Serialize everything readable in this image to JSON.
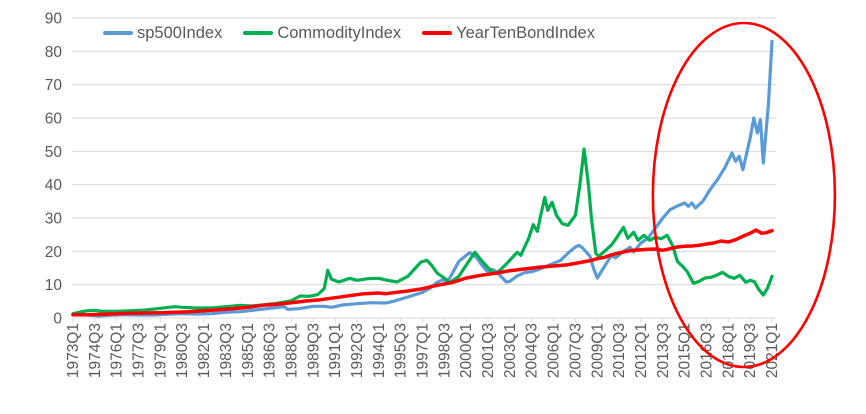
{
  "chart_data": {
    "type": "line",
    "title": "",
    "legend_position": "top",
    "grid": true,
    "y_axis": {
      "min": 0,
      "max": 90,
      "step": 10,
      "tick_labels": [
        "0",
        "10",
        "20",
        "30",
        "40",
        "50",
        "60",
        "70",
        "80",
        "90"
      ]
    },
    "x_axis": {
      "unit": "quarter",
      "first_label": "1973Q1",
      "last_label": "2021Q1",
      "tick_labels": [
        "1973Q1",
        "1974Q3",
        "1976Q1",
        "1977Q3",
        "1979Q1",
        "1980Q3",
        "1982Q1",
        "1983Q3",
        "1985Q1",
        "1986Q3",
        "1988Q1",
        "1989Q3",
        "1991Q1",
        "1992Q3",
        "1994Q1",
        "1995Q3",
        "1997Q1",
        "1998Q3",
        "2000Q1",
        "2001Q3",
        "2003Q1",
        "2004Q3",
        "2006Q1",
        "2007Q3",
        "2009Q1",
        "2010Q3",
        "2012Q1",
        "2013Q3",
        "2015Q1",
        "2016Q3",
        "2018Q1",
        "2019Q3",
        "2021Q1"
      ]
    },
    "series": [
      {
        "name": "sp500Index",
        "color": "#5B9BD5",
        "line_width": 3.2,
        "points": [
          [
            1973,
            1
          ],
          [
            1973.5,
            1
          ],
          [
            1974,
            0.9
          ],
          [
            1974.75,
            0.6
          ],
          [
            1975.5,
            0.8
          ],
          [
            1976.5,
            1
          ],
          [
            1977.5,
            0.9
          ],
          [
            1978.5,
            0.9
          ],
          [
            1979.5,
            1.1
          ],
          [
            1980.5,
            1.3
          ],
          [
            1981.5,
            1.2
          ],
          [
            1982.5,
            1.3
          ],
          [
            1983.5,
            1.7
          ],
          [
            1984.5,
            1.9
          ],
          [
            1985.5,
            2.4
          ],
          [
            1986.5,
            2.9
          ],
          [
            1987.5,
            3.4
          ],
          [
            1987.75,
            2.6
          ],
          [
            1988.5,
            2.8
          ],
          [
            1989.5,
            3.5
          ],
          [
            1990.25,
            3.5
          ],
          [
            1990.75,
            3.2
          ],
          [
            1991.5,
            3.9
          ],
          [
            1992.5,
            4.3
          ],
          [
            1993.5,
            4.6
          ],
          [
            1994.5,
            4.5
          ],
          [
            1995,
            5
          ],
          [
            1996,
            6.3
          ],
          [
            1997,
            7.7
          ],
          [
            1997.5,
            8.9
          ],
          [
            1998,
            10.7
          ],
          [
            1998.4,
            11.5
          ],
          [
            1998.7,
            10.8
          ],
          [
            1999,
            13
          ],
          [
            1999.5,
            17
          ],
          [
            2000,
            18.8
          ],
          [
            2000.25,
            19.6
          ],
          [
            2000.75,
            18
          ],
          [
            2001,
            16.3
          ],
          [
            2001.5,
            13.7
          ],
          [
            2001.75,
            14.6
          ],
          [
            2002,
            14.2
          ],
          [
            2002.5,
            12
          ],
          [
            2002.75,
            10.8
          ],
          [
            2003,
            11
          ],
          [
            2003.5,
            12.6
          ],
          [
            2004,
            13.6
          ],
          [
            2004.5,
            13.9
          ],
          [
            2005,
            14.6
          ],
          [
            2005.5,
            15.5
          ],
          [
            2006,
            16.4
          ],
          [
            2006.5,
            17.3
          ],
          [
            2007,
            19.5
          ],
          [
            2007.5,
            21.3
          ],
          [
            2007.75,
            21.8
          ],
          [
            2008,
            21
          ],
          [
            2008.5,
            18.5
          ],
          [
            2008.75,
            14.8
          ],
          [
            2009,
            12
          ],
          [
            2009.5,
            15.5
          ],
          [
            2010,
            18.8
          ],
          [
            2010.25,
            18
          ],
          [
            2010.75,
            19.8
          ],
          [
            2011.25,
            21.2
          ],
          [
            2011.5,
            19.8
          ],
          [
            2012,
            22.5
          ],
          [
            2012.5,
            24
          ],
          [
            2013,
            27
          ],
          [
            2013.5,
            30
          ],
          [
            2014,
            32.5
          ],
          [
            2014.5,
            33.6
          ],
          [
            2015,
            34.5
          ],
          [
            2015.25,
            33.5
          ],
          [
            2015.5,
            34.5
          ],
          [
            2015.75,
            33
          ],
          [
            2016.25,
            35
          ],
          [
            2016.75,
            38.5
          ],
          [
            2017.25,
            41.5
          ],
          [
            2017.75,
            45
          ],
          [
            2018.25,
            49.5
          ],
          [
            2018.5,
            47
          ],
          [
            2018.75,
            48.5
          ],
          [
            2019,
            44.5
          ],
          [
            2019.5,
            54
          ],
          [
            2019.75,
            60
          ],
          [
            2020,
            55.5
          ],
          [
            2020.2,
            59.5
          ],
          [
            2020.4,
            46.5
          ],
          [
            2020.75,
            64
          ],
          [
            2021,
            83
          ]
        ]
      },
      {
        "name": "CommodityIndex",
        "color": "#00B050",
        "line_width": 3.2,
        "points": [
          [
            1973,
            1.3
          ],
          [
            1973.5,
            1.8
          ],
          [
            1974,
            2.2
          ],
          [
            1974.5,
            2.3
          ],
          [
            1975,
            2
          ],
          [
            1976,
            2
          ],
          [
            1977,
            2.2
          ],
          [
            1978,
            2.4
          ],
          [
            1979,
            2.9
          ],
          [
            1980,
            3.4
          ],
          [
            1980.5,
            3.2
          ],
          [
            1981.5,
            3
          ],
          [
            1982.5,
            3
          ],
          [
            1983.5,
            3.4
          ],
          [
            1984.5,
            3.8
          ],
          [
            1985.25,
            3.6
          ],
          [
            1986,
            3.9
          ],
          [
            1987,
            4.4
          ],
          [
            1988,
            5.2
          ],
          [
            1988.6,
            6.6
          ],
          [
            1989.2,
            6.5
          ],
          [
            1989.8,
            7
          ],
          [
            1990.25,
            8.8
          ],
          [
            1990.5,
            14.3
          ],
          [
            1990.75,
            11.6
          ],
          [
            1991.25,
            10.8
          ],
          [
            1992,
            11.9
          ],
          [
            1992.5,
            11.3
          ],
          [
            1993.25,
            11.8
          ],
          [
            1994,
            11.9
          ],
          [
            1994.5,
            11.4
          ],
          [
            1995.25,
            10.8
          ],
          [
            1996,
            12.5
          ],
          [
            1996.9,
            16.8
          ],
          [
            1997.3,
            17.3
          ],
          [
            1997.6,
            16
          ],
          [
            1998,
            13.5
          ],
          [
            1998.9,
            10.7
          ],
          [
            1999.5,
            12.5
          ],
          [
            2000.1,
            16.5
          ],
          [
            2000.6,
            19.7
          ],
          [
            2001.1,
            17
          ],
          [
            2001.8,
            13.7
          ],
          [
            2002.1,
            13.4
          ],
          [
            2002.8,
            16.4
          ],
          [
            2003.5,
            19.7
          ],
          [
            2003.75,
            18.8
          ],
          [
            2004.3,
            24
          ],
          [
            2004.6,
            28
          ],
          [
            2004.9,
            26
          ],
          [
            2005.1,
            30.5
          ],
          [
            2005.4,
            36.2
          ],
          [
            2005.6,
            32.3
          ],
          [
            2005.9,
            34.7
          ],
          [
            2006.2,
            30.8
          ],
          [
            2006.6,
            28.3
          ],
          [
            2007,
            27.8
          ],
          [
            2007.5,
            30.8
          ],
          [
            2007.8,
            39.8
          ],
          [
            2008.1,
            50.7
          ],
          [
            2008.4,
            39.8
          ],
          [
            2008.6,
            29.9
          ],
          [
            2008.9,
            19.4
          ],
          [
            2009.1,
            18.5
          ],
          [
            2009.5,
            20
          ],
          [
            2010,
            22
          ],
          [
            2010.4,
            24.5
          ],
          [
            2010.8,
            27.2
          ],
          [
            2011.1,
            23.9
          ],
          [
            2011.5,
            25.7
          ],
          [
            2011.8,
            23.3
          ],
          [
            2012.2,
            24.8
          ],
          [
            2012.6,
            23.3
          ],
          [
            2013,
            24.2
          ],
          [
            2013.4,
            23.8
          ],
          [
            2013.8,
            24.8
          ],
          [
            2014.2,
            21.5
          ],
          [
            2014.5,
            17
          ],
          [
            2014.9,
            15.3
          ],
          [
            2015.2,
            13.8
          ],
          [
            2015.6,
            10.4
          ],
          [
            2016,
            11
          ],
          [
            2016.4,
            12
          ],
          [
            2016.8,
            12.2
          ],
          [
            2017.2,
            12.8
          ],
          [
            2017.6,
            13.7
          ],
          [
            2018,
            12.5
          ],
          [
            2018.4,
            11.9
          ],
          [
            2018.8,
            12.8
          ],
          [
            2019.2,
            10.7
          ],
          [
            2019.5,
            11.3
          ],
          [
            2019.8,
            10.9
          ],
          [
            2020.1,
            8.5
          ],
          [
            2020.4,
            6.9
          ],
          [
            2020.7,
            9
          ],
          [
            2021,
            12.5
          ]
        ]
      },
      {
        "name": "YearTenBondIndex",
        "color": "#FF0000",
        "line_width": 3.5,
        "points": [
          [
            1973,
            1
          ],
          [
            1974,
            1
          ],
          [
            1975,
            1.1
          ],
          [
            1976,
            1.3
          ],
          [
            1977,
            1.4
          ],
          [
            1978,
            1.5
          ],
          [
            1979,
            1.6
          ],
          [
            1980,
            1.7
          ],
          [
            1981,
            1.9
          ],
          [
            1982,
            2.2
          ],
          [
            1983,
            2.5
          ],
          [
            1984,
            2.8
          ],
          [
            1985,
            3.2
          ],
          [
            1986,
            3.8
          ],
          [
            1987,
            4.1
          ],
          [
            1988,
            4.6
          ],
          [
            1989,
            5.1
          ],
          [
            1990,
            5.5
          ],
          [
            1991,
            6.1
          ],
          [
            1992,
            6.7
          ],
          [
            1993,
            7.3
          ],
          [
            1994,
            7.5
          ],
          [
            1994.5,
            7.3
          ],
          [
            1995,
            7.6
          ],
          [
            1996,
            8.1
          ],
          [
            1997,
            8.8
          ],
          [
            1998,
            9.8
          ],
          [
            1999,
            10.6
          ],
          [
            2000,
            12
          ],
          [
            2001,
            12.8
          ],
          [
            2002,
            13.4
          ],
          [
            2003,
            14.2
          ],
          [
            2004,
            14.7
          ],
          [
            2005,
            15.2
          ],
          [
            2006,
            15.6
          ],
          [
            2007,
            16
          ],
          [
            2008,
            16.8
          ],
          [
            2008.5,
            17.2
          ],
          [
            2009,
            17.8
          ],
          [
            2009.5,
            18.2
          ],
          [
            2010,
            19
          ],
          [
            2010.5,
            19.5
          ],
          [
            2011,
            20
          ],
          [
            2011.5,
            20.3
          ],
          [
            2012,
            20.5
          ],
          [
            2012.5,
            20.6
          ],
          [
            2013,
            20.7
          ],
          [
            2013.5,
            20.3
          ],
          [
            2014,
            20.8
          ],
          [
            2014.5,
            21.3
          ],
          [
            2015,
            21.5
          ],
          [
            2015.5,
            21.6
          ],
          [
            2016,
            21.8
          ],
          [
            2016.5,
            22.2
          ],
          [
            2017,
            22.5
          ],
          [
            2017.5,
            23.1
          ],
          [
            2018,
            22.8
          ],
          [
            2018.5,
            23.5
          ],
          [
            2019,
            24.5
          ],
          [
            2019.5,
            25.4
          ],
          [
            2019.9,
            26.4
          ],
          [
            2020.3,
            25.4
          ],
          [
            2020.6,
            25.6
          ],
          [
            2021,
            26.2
          ]
        ]
      }
    ],
    "annotation": {
      "shape": "ellipse",
      "color": "#FF0000",
      "stroke_width": 2.6,
      "x_center_year": 2019.07,
      "x_radius_years": 6.25,
      "y_center_value": 36.9,
      "y_radius_value": 51.6
    },
    "colors": {
      "grid": "#D9D9D9",
      "axis_text": "#595959",
      "background": "#FFFFFF"
    }
  }
}
